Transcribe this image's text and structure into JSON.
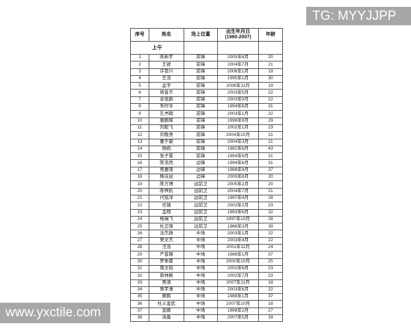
{
  "watermarks": {
    "telegram_label": "TG: MYYJJPP",
    "website_label": "www.yxctile.com",
    "bar_color": "#a7a7a7",
    "text_color": "#ffffff"
  },
  "table": {
    "section_label": "上午",
    "columns": [
      {
        "key": "no",
        "label": "序号",
        "sub": ""
      },
      {
        "key": "name",
        "label": "姓名",
        "sub": ""
      },
      {
        "key": "position",
        "label": "场上位置",
        "sub": ""
      },
      {
        "key": "birth",
        "label": "出生年月日",
        "sub": "(1980-2007)"
      },
      {
        "key": "age",
        "label": "年龄",
        "sub": ""
      }
    ],
    "rows": [
      {
        "no": "1",
        "name": "陈新宇",
        "position": "前锋",
        "birth": "2005年8月",
        "age": "20"
      },
      {
        "no": "2",
        "name": "王锐",
        "position": "前锋",
        "birth": "2004年7月",
        "age": "21"
      },
      {
        "no": "3",
        "name": "许百川",
        "position": "前锋",
        "birth": "2006年1月",
        "age": "19"
      },
      {
        "no": "4",
        "name": "王浩",
        "position": "前锋",
        "birth": "1995年1月",
        "age": "30"
      },
      {
        "no": "5",
        "name": "孟宇",
        "position": "前锋",
        "birth": "2006年11月",
        "age": "19"
      },
      {
        "no": "6",
        "name": "蒋普齐",
        "position": "前锋",
        "birth": "2003年5月",
        "age": "22"
      },
      {
        "no": "7",
        "name": "余佳蔚",
        "position": "前锋",
        "birth": "2003年9月",
        "age": "22"
      },
      {
        "no": "8",
        "name": "朱时令",
        "position": "前锋",
        "birth": "1994年8月",
        "age": "31"
      },
      {
        "no": "9",
        "name": "孔书翰",
        "position": "前锋",
        "birth": "2003年1月",
        "age": "22"
      },
      {
        "no": "10",
        "name": "唐鹏辉",
        "position": "前锋",
        "birth": "1996年9月",
        "age": "29"
      },
      {
        "no": "11",
        "name": "刘毅飞",
        "position": "前锋",
        "birth": "2002年1月",
        "age": "23"
      },
      {
        "no": "12",
        "name": "刘敬贤",
        "position": "前锋",
        "birth": "2004年10月",
        "age": "21"
      },
      {
        "no": "13",
        "name": "董于豪",
        "position": "前锋",
        "birth": "2004年3月",
        "age": "21"
      },
      {
        "no": "14",
        "name": "杨帆",
        "position": "前锋",
        "birth": "1982年6月",
        "age": "43"
      },
      {
        "no": "15",
        "name": "张子慧",
        "position": "前锋",
        "birth": "1994年9月",
        "age": "31"
      },
      {
        "no": "16",
        "name": "陈浩然",
        "position": "边锋",
        "birth": "1994年6月",
        "age": "31"
      },
      {
        "no": "17",
        "name": "吴嘉强",
        "position": "边锋",
        "birth": "1988年8月",
        "age": "37"
      },
      {
        "no": "18",
        "name": "杨沅昆",
        "position": "边锋",
        "birth": "2005年8月",
        "age": "20"
      },
      {
        "no": "19",
        "name": "陈万博",
        "position": "边前卫",
        "birth": "2005年2月",
        "age": "20"
      },
      {
        "no": "20",
        "name": "陈梓航",
        "position": "边前卫",
        "birth": "2004年7月",
        "age": "21"
      },
      {
        "no": "21",
        "name": "代铭洋",
        "position": "边前卫",
        "birth": "1997年4月",
        "age": "28"
      },
      {
        "no": "22",
        "name": "任镇",
        "position": "边前卫",
        "birth": "2002年2月",
        "age": "23"
      },
      {
        "no": "23",
        "name": "孟翔",
        "position": "边前卫",
        "birth": "1993年6月",
        "age": "32"
      },
      {
        "no": "24",
        "name": "杨瑞飞",
        "position": "边前卫",
        "birth": "1997年10月",
        "age": "28"
      },
      {
        "no": "25",
        "name": "杜正强",
        "position": "边前卫",
        "birth": "1986年3月",
        "age": "39"
      },
      {
        "no": "26",
        "name": "沈杰扬",
        "position": "中场",
        "birth": "2003年1月",
        "age": "22"
      },
      {
        "no": "27",
        "name": "吴文杰",
        "position": "中场",
        "birth": "2003年4月",
        "age": "22"
      },
      {
        "no": "28",
        "name": "汪浩",
        "position": "中场",
        "birth": "2001年11月",
        "age": "24"
      },
      {
        "no": "29",
        "name": "严普璐",
        "position": "中场",
        "birth": "1988年1月",
        "age": "37"
      },
      {
        "no": "30",
        "name": "罗季霖",
        "position": "中场",
        "birth": "2000年10月",
        "age": "25"
      },
      {
        "no": "31",
        "name": "周文韬",
        "position": "中场",
        "birth": "2002年8月",
        "age": "23"
      },
      {
        "no": "32",
        "name": "蔡林枫",
        "position": "中场",
        "birth": "2002年7月",
        "age": "23"
      },
      {
        "no": "33",
        "name": "吴涵",
        "position": "中场",
        "birth": "2007年11月",
        "age": "18"
      },
      {
        "no": "34",
        "name": "吴宇潇",
        "position": "中场",
        "birth": "2003年6月",
        "age": "22"
      },
      {
        "no": "35",
        "name": "黄鹤",
        "position": "中场",
        "birth": "1988年1月",
        "age": "37"
      },
      {
        "no": "36",
        "name": "杜义金武",
        "position": "中场",
        "birth": "2007年10月",
        "age": "18"
      },
      {
        "no": "37",
        "name": "宣鹏",
        "position": "中场",
        "birth": "1998年2月",
        "age": "27"
      },
      {
        "no": "38",
        "name": "洛桑",
        "position": "中场",
        "birth": "2007年5月",
        "age": "18"
      }
    ]
  }
}
